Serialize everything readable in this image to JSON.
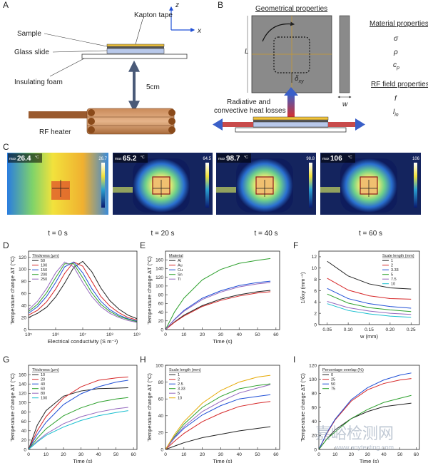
{
  "panel_a": {
    "label": "A",
    "kapton_tape": "Kapton tape",
    "sample": "Sample",
    "glass_slide": "Glass slide",
    "insulating_foam": "Insulating foam",
    "distance": "5cm",
    "rf_heater": "RF heater",
    "axis_z": "z",
    "axis_x": "x"
  },
  "panel_b": {
    "label": "B",
    "geometrical_properties": "Geometrical properties",
    "length": "L",
    "delta": {
      "symbol": "δ",
      "sub": "xy"
    },
    "width": "w",
    "heat_losses": [
      "Radiative and",
      "convective heat losses"
    ],
    "material_properties": "Material properties",
    "sigma": "σ",
    "rho": "ρ",
    "cp": {
      "symbol": "c",
      "sub": "p"
    },
    "rf_field_properties": "RF field properties",
    "frequency": "f",
    "lin": {
      "symbol": "l",
      "sub": "in"
    }
  },
  "panel_c": {
    "label": "C",
    "images": [
      {
        "max_label": "max",
        "max": 26.4,
        "unit": "°C",
        "scale_max": 26.7,
        "time": "t = 0 s"
      },
      {
        "max_label": "max",
        "max": 65.2,
        "unit": "°C",
        "scale_max": 64.5,
        "time": "t = 20 s"
      },
      {
        "max_label": "max",
        "max": 98.7,
        "unit": "°C",
        "scale_max": 98.8,
        "time": "t = 40 s"
      },
      {
        "max_label": "max",
        "max": 106,
        "unit": "°C",
        "scale_max": 106,
        "time": "t = 60 s"
      }
    ]
  },
  "watermark": {
    "main": "嘉峪检测网",
    "url": "www.anytesting.com"
  },
  "chart_data": [
    {
      "type": "line",
      "panel_label": "D",
      "x_label": "Electrical conductivity (S m⁻¹)",
      "y_label": "Temperature change ΔT (°C)",
      "legend_title": "Thickness (μm)",
      "legend": "upper left",
      "log_x": true,
      "xlim": [
        100000,
        1000000000
      ],
      "xticks": [
        {
          "value": 100000,
          "label": "10⁵"
        },
        {
          "value": 1000000,
          "label": "10⁶"
        },
        {
          "value": 10000000,
          "label": "10⁷"
        },
        {
          "value": 100000000,
          "label": "10⁸"
        },
        {
          "value": 1000000000,
          "label": "10⁹"
        }
      ],
      "ylim": [
        0,
        130
      ],
      "yticks": [
        0,
        20,
        40,
        60,
        80,
        100,
        120
      ],
      "x": [
        100000,
        215000,
        464000,
        1000000,
        2150000,
        4640000,
        10000000,
        21500000,
        46400000,
        100000000,
        215000000,
        464000000,
        1000000000
      ],
      "series": [
        {
          "name": "50",
          "color": "#222222",
          "values": [
            20,
            27,
            37,
            54,
            77,
            103,
            113,
            96,
            69,
            48,
            34,
            24,
            18
          ]
        },
        {
          "name": "100",
          "color": "#d62728",
          "values": [
            24,
            32,
            46,
            67,
            93,
            112,
            105,
            80,
            55,
            39,
            28,
            20,
            16
          ]
        },
        {
          "name": "150",
          "color": "#1f4fd6",
          "values": [
            27,
            38,
            55,
            78,
            104,
            112,
            94,
            68,
            47,
            33,
            24,
            18,
            14
          ]
        },
        {
          "name": "200",
          "color": "#2ca02c",
          "values": [
            30,
            42,
            61,
            86,
            109,
            109,
            86,
            61,
            42,
            30,
            22,
            17,
            13
          ]
        },
        {
          "name": "250",
          "color": "#9467bd",
          "values": [
            33,
            47,
            68,
            94,
            112,
            104,
            78,
            55,
            38,
            27,
            20,
            15,
            12
          ]
        }
      ]
    },
    {
      "type": "line",
      "panel_label": "E",
      "x_label": "Time (s)",
      "y_label": "Temperature change ΔT (°C)",
      "legend_title": "Material",
      "legend": "upper left",
      "xlim": [
        0,
        62
      ],
      "xticks": [
        0,
        10,
        20,
        30,
        40,
        50,
        60
      ],
      "ylim": [
        0,
        180
      ],
      "yticks": [
        0,
        20,
        40,
        60,
        80,
        100,
        120,
        140,
        160
      ],
      "x": [
        0,
        5,
        10,
        20,
        30,
        40,
        50,
        57
      ],
      "series": [
        {
          "name": "Al",
          "color": "#222222",
          "values": [
            0,
            18,
            33,
            55,
            70,
            80,
            87,
            90
          ]
        },
        {
          "name": "Au",
          "color": "#d62728",
          "values": [
            0,
            17,
            31,
            53,
            67,
            77,
            84,
            87
          ]
        },
        {
          "name": "Cu",
          "color": "#1f4fd6",
          "values": [
            0,
            24,
            44,
            72,
            89,
            101,
            108,
            111
          ]
        },
        {
          "name": "Sn",
          "color": "#2ca02c",
          "values": [
            0,
            41,
            72,
            114,
            138,
            152,
            159,
            163
          ]
        },
        {
          "name": "Ti",
          "color": "#9467bd",
          "values": [
            0,
            23,
            42,
            69,
            86,
            98,
            105,
            108
          ]
        }
      ]
    },
    {
      "type": "line",
      "panel_label": "F",
      "x_label": "w (mm)",
      "y_label": "1/δxy (mm⁻¹)",
      "legend_title": "Scale length (mm)",
      "legend": "upper right",
      "xlim": [
        0.03,
        0.27
      ],
      "xticks": [
        0.05,
        {
          "value": 0.1,
          "label": "0.10"
        },
        0.15,
        {
          "value": 0.2,
          "label": "0.20"
        },
        0.25
      ],
      "ylim": [
        0,
        13
      ],
      "yticks": [
        0,
        2,
        4,
        6,
        8,
        10,
        12
      ],
      "x": [
        0.05,
        0.1,
        0.15,
        0.2,
        0.25
      ],
      "series": [
        {
          "name": "1",
          "color": "#222222",
          "values": [
            11.2,
            8.6,
            7.2,
            6.5,
            6.3
          ]
        },
        {
          "name": "2",
          "color": "#d62728",
          "values": [
            8.2,
            6.1,
            5.1,
            4.6,
            4.5
          ]
        },
        {
          "name": "3.33",
          "color": "#1f4fd6",
          "values": [
            6.4,
            4.6,
            3.7,
            3.2,
            2.9
          ]
        },
        {
          "name": "5",
          "color": "#2ca02c",
          "values": [
            5.4,
            3.8,
            3.0,
            2.6,
            2.3
          ]
        },
        {
          "name": "7.5",
          "color": "#9467bd",
          "values": [
            4.1,
            3.0,
            2.4,
            2.0,
            1.8
          ]
        },
        {
          "name": "10",
          "color": "#17becf",
          "values": [
            3.7,
            2.5,
            1.9,
            1.5,
            1.3
          ]
        }
      ]
    },
    {
      "type": "line",
      "panel_label": "G",
      "x_label": "Time (s)",
      "y_label": "Temperature change ΔT (°C)",
      "legend_title": "Thickness (μm)",
      "legend": "upper left",
      "xlim": [
        0,
        62
      ],
      "xticks": [
        0,
        10,
        20,
        30,
        40,
        50,
        60
      ],
      "ylim": [
        0,
        180
      ],
      "yticks": [
        0,
        20,
        40,
        60,
        80,
        100,
        120,
        140,
        160
      ],
      "x": [
        0,
        5,
        10,
        20,
        30,
        40,
        50,
        57
      ],
      "series": [
        {
          "name": "10",
          "color": "#222222",
          "values": [
            0,
            52,
            83,
            114,
            125,
            130,
            131,
            132
          ]
        },
        {
          "name": "20",
          "color": "#d62728",
          "values": [
            0,
            40,
            70,
            110,
            134,
            148,
            153,
            155
          ]
        },
        {
          "name": "40",
          "color": "#1f4fd6",
          "values": [
            0,
            32,
            58,
            96,
            119,
            134,
            144,
            148
          ]
        },
        {
          "name": "60",
          "color": "#2ca02c",
          "values": [
            0,
            24,
            44,
            72,
            89,
            101,
            108,
            111
          ]
        },
        {
          "name": "80",
          "color": "#9467bd",
          "values": [
            0,
            18,
            33,
            55,
            70,
            80,
            87,
            90
          ]
        },
        {
          "name": "100",
          "color": "#17becf",
          "values": [
            0,
            16,
            30,
            48,
            62,
            72,
            79,
            83
          ]
        }
      ]
    },
    {
      "type": "line",
      "panel_label": "H",
      "x_label": "Time (s)",
      "y_label": "Temperature change ΔT (°C)",
      "legend_title": "Scale length (mm)",
      "legend": "upper left",
      "xlim": [
        0,
        62
      ],
      "xticks": [
        0,
        10,
        20,
        30,
        40,
        50,
        60
      ],
      "ylim": [
        0,
        100
      ],
      "yticks": [
        0,
        20,
        40,
        60,
        80,
        100
      ],
      "x": [
        0,
        5,
        10,
        20,
        30,
        40,
        50,
        57
      ],
      "series": [
        {
          "name": "1",
          "color": "#222222",
          "values": [
            0,
            4,
            8,
            14,
            18,
            22,
            25,
            27
          ]
        },
        {
          "name": "2",
          "color": "#d62728",
          "values": [
            0,
            10,
            19,
            33,
            43,
            51,
            55,
            57
          ]
        },
        {
          "name": "2.5",
          "color": "#1f4fd6",
          "values": [
            0,
            14,
            25,
            41,
            52,
            60,
            63,
            65
          ]
        },
        {
          "name": "3.33",
          "color": "#2ca02c",
          "values": [
            0,
            16,
            30,
            50,
            63,
            72,
            76,
            78
          ]
        },
        {
          "name": "5",
          "color": "#9467bd",
          "values": [
            0,
            15,
            27,
            45,
            57,
            67,
            73,
            77
          ]
        },
        {
          "name": "10",
          "color": "#e6a800",
          "values": [
            0,
            18,
            33,
            55,
            70,
            80,
            86,
            88
          ]
        }
      ]
    },
    {
      "type": "line",
      "panel_label": "I",
      "x_label": "Time (s)",
      "y_label": "Temperature change ΔT (°C)",
      "legend_title": "Percentage overlap (%)",
      "legend": "upper left",
      "xlim": [
        0,
        62
      ],
      "xticks": [
        0,
        10,
        20,
        30,
        40,
        50,
        60
      ],
      "ylim": [
        0,
        120
      ],
      "yticks": [
        0,
        20,
        40,
        60,
        80,
        100,
        120
      ],
      "x": [
        0,
        5,
        10,
        20,
        30,
        40,
        50,
        57
      ],
      "series": [
        {
          "name": "0",
          "color": "#222222",
          "values": [
            0,
            15,
            28,
            44,
            54,
            61,
            64,
            66
          ]
        },
        {
          "name": "25",
          "color": "#d62728",
          "values": [
            0,
            23,
            42,
            69,
            85,
            94,
            99,
            101
          ]
        },
        {
          "name": "50",
          "color": "#1f4fd6",
          "values": [
            0,
            24,
            43,
            71,
            88,
            99,
            106,
            109
          ]
        },
        {
          "name": "75",
          "color": "#2ca02c",
          "values": [
            0,
            15,
            25,
            44,
            57,
            67,
            73,
            77
          ]
        }
      ]
    }
  ]
}
